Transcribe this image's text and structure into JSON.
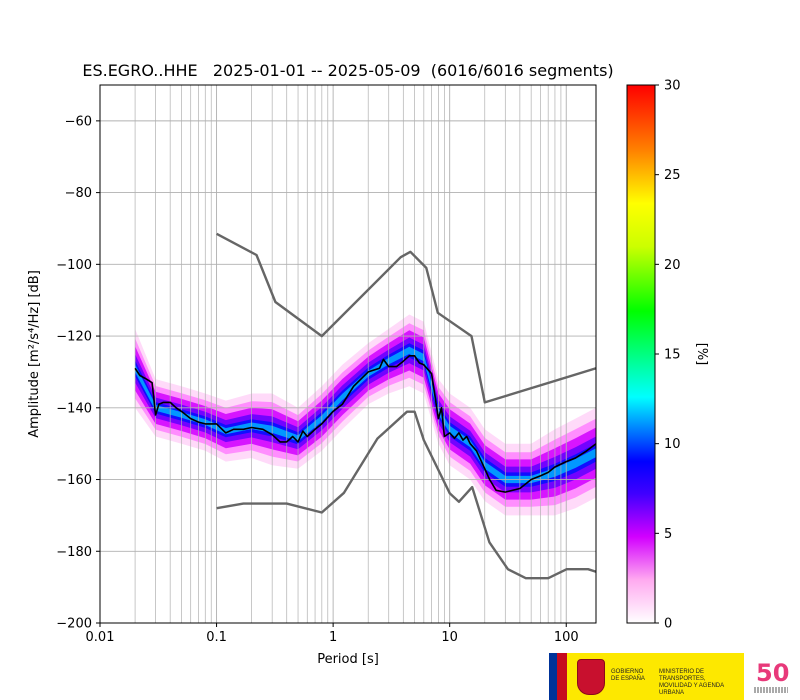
{
  "chart_data": {
    "type": "heatmap",
    "title": "ES.EGRO..HHE   2025-01-01 -- 2025-05-09  (6016/6016 segments)",
    "xlabel": "Period [s]",
    "ylabel": "Amplitude [m²/s⁴/Hz] [dB]",
    "xscale": "log",
    "xlim": [
      0.01,
      180
    ],
    "ylim": [
      -200,
      -50
    ],
    "x_ticks": [
      0.01,
      0.1,
      1,
      10,
      100
    ],
    "x_tick_labels": [
      "0.01",
      "0.1",
      "1",
      "10",
      "100"
    ],
    "y_ticks": [
      -200,
      -180,
      -160,
      -140,
      -120,
      -100,
      -80,
      -60
    ],
    "y_tick_labels": [
      "−200",
      "−180",
      "−160",
      "−140",
      "−120",
      "−100",
      "−80",
      "−60"
    ],
    "grid": true,
    "colorbar": {
      "label": "[%]",
      "range": [
        0,
        30
      ],
      "ticks": [
        0,
        5,
        10,
        15,
        20,
        25,
        30
      ],
      "tick_labels": [
        "0",
        "5",
        "10",
        "15",
        "20",
        "25",
        "30"
      ]
    },
    "series": [
      {
        "name": "",
        "kind": "median",
        "color": "#000000",
        "period": [
          0.02,
          0.022,
          0.025,
          0.028,
          0.03,
          0.032,
          0.035,
          0.04,
          0.045,
          0.05,
          0.06,
          0.07,
          0.08,
          0.1,
          0.12,
          0.14,
          0.17,
          0.2,
          0.25,
          0.3,
          0.35,
          0.4,
          0.45,
          0.5,
          0.55,
          0.6,
          0.7,
          0.8,
          1.0,
          1.2,
          1.5,
          2.0,
          2.5,
          2.7,
          3.0,
          3.5,
          4.0,
          4.5,
          5.0,
          5.5,
          6.0,
          7.0,
          8.0,
          8.5,
          9.0,
          10,
          11,
          12,
          13,
          14,
          15,
          17,
          20,
          22,
          25,
          30,
          40,
          50,
          60,
          70,
          80,
          100,
          120,
          150,
          180
        ],
        "amplitude": [
          -129,
          -131,
          -132,
          -133,
          -142,
          -139,
          -138.5,
          -138.5,
          -140,
          -141,
          -143,
          -144,
          -144.5,
          -144.5,
          -147,
          -146,
          -146,
          -145.5,
          -146,
          -147.5,
          -149.5,
          -149.5,
          -148,
          -149.5,
          -146.5,
          -148,
          -146,
          -144.5,
          -141,
          -139,
          -134,
          -130,
          -129,
          -126.5,
          -128.5,
          -128.5,
          -127,
          -125.5,
          -125.5,
          -127.5,
          -128,
          -130.5,
          -143,
          -140,
          -148,
          -147,
          -148.5,
          -147,
          -149,
          -148,
          -150,
          -152,
          -157,
          -160,
          -163,
          -163.5,
          -162.5,
          -160,
          -159,
          -158,
          -156.5,
          -155,
          -154,
          -152,
          -150
        ]
      },
      {
        "name": "",
        "kind": "new-high-noise-model",
        "color": "#666666",
        "period": [
          0.1,
          0.22,
          0.32,
          0.8,
          3.8,
          4.6,
          6.3,
          7.9,
          15.4,
          20,
          180
        ],
        "amplitude": [
          -91.5,
          -97.4,
          -110.5,
          -120.0,
          -98.0,
          -96.5,
          -101.0,
          -113.5,
          -120.0,
          -138.5,
          -129.0
        ]
      },
      {
        "name": "",
        "kind": "new-low-noise-model",
        "color": "#666666",
        "period": [
          0.1,
          0.17,
          0.4,
          0.8,
          1.24,
          2.4,
          4.3,
          5.0,
          6.0,
          10.0,
          12.0,
          15.6,
          21.9,
          31.6,
          45.0,
          70.0,
          101.0,
          154.0,
          180
        ],
        "amplitude": [
          -168.0,
          -166.7,
          -166.7,
          -169.2,
          -163.7,
          -148.6,
          -141.1,
          -141.1,
          -149.0,
          -163.8,
          -166.2,
          -162.1,
          -177.5,
          -185.0,
          -187.5,
          -187.5,
          -185.0,
          -185.0,
          -185.7
        ]
      }
    ],
    "density_band": {
      "period": [
        0.02,
        0.03,
        0.05,
        0.08,
        0.12,
        0.2,
        0.3,
        0.5,
        0.8,
        1.2,
        2,
        3,
        4.5,
        6,
        8,
        10,
        15,
        20,
        30,
        50,
        80,
        120,
        180
      ],
      "low": [
        -140,
        -148,
        -150,
        -152,
        -155,
        -154,
        -156,
        -157,
        -152,
        -146,
        -139,
        -136,
        -134,
        -136,
        -150,
        -156,
        -160,
        -166,
        -170,
        -170,
        -170,
        -168,
        -165
      ],
      "high": [
        -118,
        -132,
        -134,
        -136,
        -138,
        -136,
        -136,
        -140,
        -134,
        -128,
        -122,
        -118,
        -114,
        -116,
        -132,
        -136,
        -140,
        -146,
        -150,
        -150,
        -146,
        -143,
        -140
      ]
    }
  },
  "footer": {
    "gob_text": "GOBIERNO DE ESPAÑA",
    "ministry_text": "MINISTERIO DE TRANSPORTES, MOVILIDAD Y AGENDA URBANA",
    "ign_text": "50"
  }
}
